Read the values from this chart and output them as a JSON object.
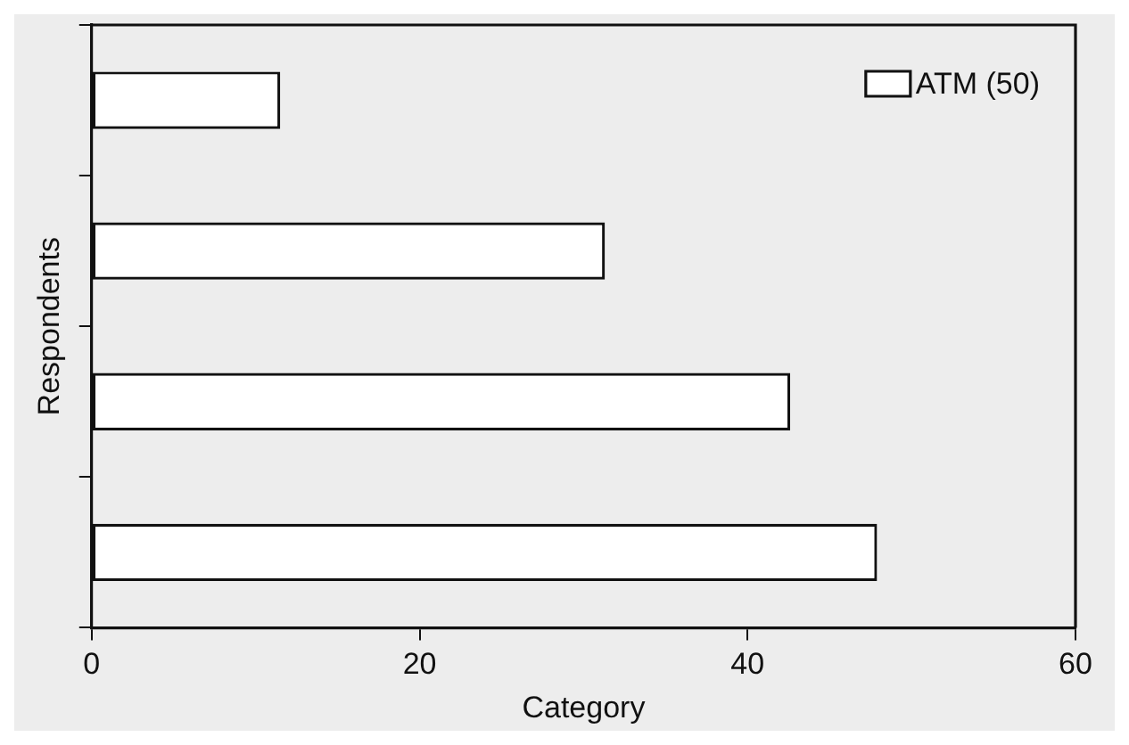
{
  "chart_data": {
    "type": "bar",
    "orientation": "horizontal",
    "xlabel": "Category",
    "ylabel": "Respondents",
    "categories": [
      null,
      null,
      null,
      null
    ],
    "series": [
      {
        "name": "ATM (50)",
        "color": "#ffffff",
        "values": [
          11.5,
          31.3,
          42.6,
          47.9
        ]
      }
    ],
    "xlim": [
      0,
      60
    ],
    "xticks": [
      0,
      20,
      40,
      60
    ],
    "tick_labels": "x",
    "grid": false,
    "legend": "top right"
  }
}
